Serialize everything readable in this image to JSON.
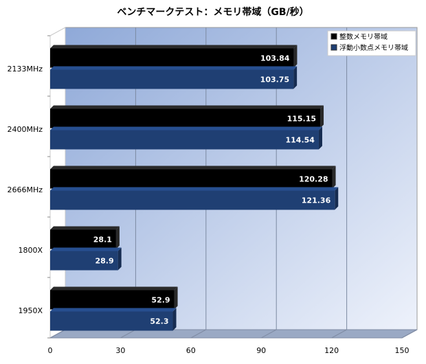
{
  "chart_data": {
    "type": "bar",
    "orientation": "horizontal",
    "title": "ベンチマークテスト：メモリ帯域（GB/秒）",
    "categories": [
      "2133MHz",
      "2400MHz",
      "2666MHz",
      "1800X",
      "1950X"
    ],
    "series": [
      {
        "name": "整数メモリ帯域",
        "color": "#000000",
        "values": [
          103.84,
          115.15,
          120.28,
          28.1,
          52.9
        ]
      },
      {
        "name": "浮動小数点メモリ帯域",
        "color": "#1f3f73",
        "values": [
          103.75,
          114.54,
          121.36,
          28.9,
          52.3
        ]
      }
    ],
    "value_labels": [
      [
        "103.84",
        "115.15",
        "120.28",
        "28.1",
        "52.9"
      ],
      [
        "103.75",
        "114.54",
        "121.36",
        "28.9",
        "52.3"
      ]
    ],
    "xlim": [
      0,
      150
    ],
    "xticks": [
      "0",
      "30",
      "60",
      "90",
      "120",
      "150"
    ],
    "xlabel": "",
    "ylabel": "",
    "grid": true,
    "legend_position": "top-right",
    "background_gradient": [
      "#8fa9d8",
      "#eef2fb"
    ]
  }
}
